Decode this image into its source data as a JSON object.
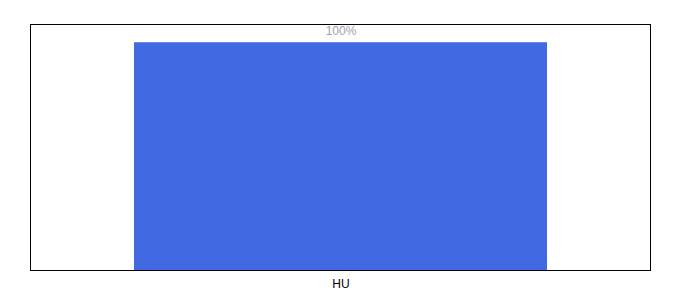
{
  "chart_data": {
    "type": "bar",
    "categories": [
      "HU"
    ],
    "values": [
      100
    ],
    "value_labels": [
      "100%"
    ],
    "color": "#4169e1",
    "ylim": [
      0,
      108
    ],
    "data_labels": true,
    "tick_labels": "x",
    "grid": false
  }
}
